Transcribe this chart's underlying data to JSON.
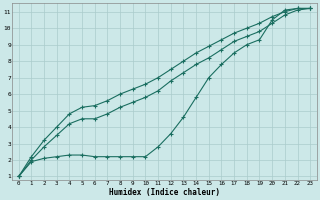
{
  "xlabel": "Humidex (Indice chaleur)",
  "bg_color": "#cce8e8",
  "grid_color": "#aacccc",
  "line_color": "#1a6e60",
  "xlim_min": -0.5,
  "xlim_max": 23.5,
  "ylim_min": 0.8,
  "ylim_max": 11.5,
  "xticks": [
    0,
    1,
    2,
    3,
    4,
    5,
    6,
    7,
    8,
    9,
    10,
    11,
    12,
    13,
    14,
    15,
    16,
    17,
    18,
    19,
    20,
    21,
    22,
    23
  ],
  "yticks": [
    1,
    2,
    3,
    4,
    5,
    6,
    7,
    8,
    9,
    10,
    11
  ],
  "series1_x": [
    0,
    1,
    2,
    3,
    4,
    5,
    6,
    7,
    8,
    9,
    10,
    11,
    12,
    13,
    14,
    15,
    16,
    17,
    18,
    19,
    20,
    21,
    22,
    23
  ],
  "series1_y": [
    1.0,
    1.9,
    2.1,
    2.2,
    2.3,
    2.3,
    2.2,
    2.2,
    2.2,
    2.2,
    2.2,
    2.8,
    3.6,
    4.6,
    5.8,
    7.0,
    7.8,
    8.5,
    9.0,
    9.3,
    10.5,
    11.1,
    11.2,
    11.2
  ],
  "series2_x": [
    0,
    1,
    2,
    3,
    4,
    5,
    6,
    7,
    8,
    9,
    10,
    11,
    12,
    13,
    14,
    15,
    16,
    17,
    18,
    19,
    20,
    21,
    22,
    23
  ],
  "series2_y": [
    1.0,
    2.0,
    2.8,
    3.5,
    4.2,
    4.5,
    4.5,
    4.8,
    5.2,
    5.5,
    5.8,
    6.2,
    6.8,
    7.3,
    7.8,
    8.2,
    8.7,
    9.2,
    9.5,
    9.8,
    10.3,
    10.8,
    11.1,
    11.2
  ],
  "series3_x": [
    0,
    1,
    2,
    3,
    4,
    5,
    6,
    7,
    8,
    9,
    10,
    11,
    12,
    13,
    14,
    15,
    16,
    17,
    18,
    19,
    20,
    21,
    22,
    23
  ],
  "series3_y": [
    1.0,
    2.2,
    3.2,
    4.0,
    4.8,
    5.2,
    5.3,
    5.6,
    6.0,
    6.3,
    6.6,
    7.0,
    7.5,
    8.0,
    8.5,
    8.9,
    9.3,
    9.7,
    10.0,
    10.3,
    10.7,
    11.0,
    11.2,
    11.2
  ]
}
